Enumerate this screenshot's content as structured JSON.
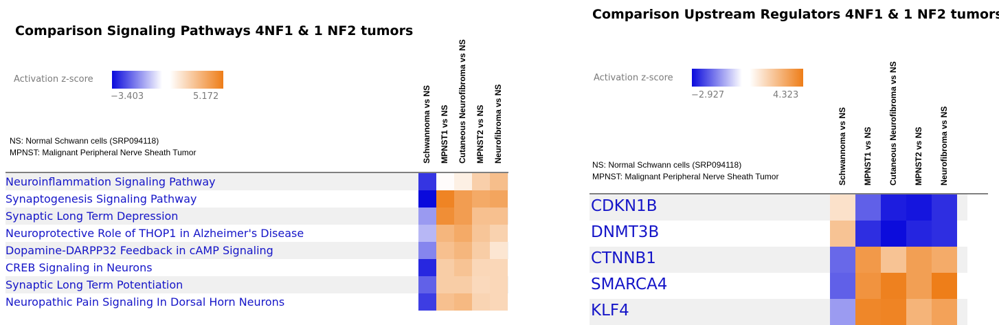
{
  "left": {
    "title": "Comparison Signaling Pathways 4NF1 & 1 NF2 tumors",
    "legend": {
      "label": "Activation z-score",
      "min": "−3.403",
      "max": "5.172"
    },
    "notes": [
      "NS: Normal Schwann cells (SRP094118)",
      "MPNST: Malignant Peripheral Nerve Sheath Tumor"
    ]
  },
  "right": {
    "title": "Comparison Upstream Regulators 4NF1 & 1 NF2 tumors",
    "legend": {
      "label": "Activation z-score",
      "min": "−2.927",
      "max": "4.323"
    },
    "notes": [
      "NS: Normal Schwann cells (SRP094118)",
      "MPNST: Malignant Peripheral Nerve Sheath Tumor"
    ]
  },
  "chart_data": [
    {
      "type": "heatmap",
      "title": "Comparison Signaling Pathways 4NF1 & 1 NF2 tumors",
      "colorbar": {
        "label": "Activation z-score",
        "min": -3.403,
        "max": 5.172
      },
      "columns": [
        "Schwannoma vs NS",
        "MPNST1 vs NS",
        "Cutaneous Neurofibroma vs NS",
        "MPNST2 vs NS",
        "Neurofibroma vs NS"
      ],
      "rows": [
        "Neuroinflammation Signaling Pathway",
        "Synaptogenesis Signaling Pathway",
        "Synaptic Long Term Depression",
        "Neuroprotective Role of THOP1 in Alzheimer's Disease",
        "Dopamine-DARPP32 Feedback in cAMP Signaling",
        "CREB Signaling in Neurons",
        "Synaptic Long Term Potentiation",
        "Neuropathic Pain Signaling In Dorsal Horn Neurons"
      ],
      "values": [
        [
          -2.8,
          0.1,
          0.6,
          1.9,
          2.6
        ],
        [
          -3.4,
          4.9,
          3.9,
          3.4,
          3.6
        ],
        [
          -1.4,
          4.5,
          3.9,
          2.5,
          2.5
        ],
        [
          -1.0,
          2.9,
          3.4,
          2.3,
          1.8
        ],
        [
          -1.7,
          2.5,
          2.9,
          2.0,
          1.0
        ],
        [
          -3.0,
          2.0,
          2.4,
          1.6,
          1.6
        ],
        [
          -2.2,
          2.0,
          2.0,
          1.5,
          1.6
        ],
        [
          -2.7,
          2.5,
          2.8,
          1.7,
          1.6
        ]
      ]
    },
    {
      "type": "heatmap",
      "title": "Comparison Upstream Regulators 4NF1 & 1 NF2 tumors",
      "colorbar": {
        "label": "Activation z-score",
        "min": -2.927,
        "max": 4.323
      },
      "columns": [
        "Schwannoma vs NS",
        "MPNST1 vs NS",
        "Cutaneous Neurofibroma vs NS",
        "MPNST2 vs NS",
        "Neurofibroma vs NS"
      ],
      "rows": [
        "CDKN1B",
        "DNMT3B",
        "CTNNB1",
        "SMARCA4",
        "KLF4"
      ],
      "values": [
        [
          1.0,
          -1.9,
          -2.7,
          -2.8,
          -2.5
        ],
        [
          2.0,
          -2.5,
          -2.9,
          -2.6,
          -2.5
        ],
        [
          -1.8,
          3.4,
          2.0,
          3.2,
          2.8
        ],
        [
          -1.9,
          3.6,
          4.2,
          3.2,
          4.3
        ],
        [
          -1.2,
          4.0,
          4.1,
          2.5,
          3.1
        ]
      ]
    }
  ]
}
